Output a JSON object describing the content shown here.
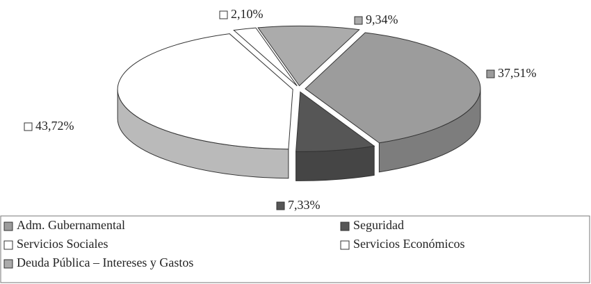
{
  "chart_data": {
    "type": "pie3d",
    "categories": [
      "Adm. Gubernamental",
      "Seguridad",
      "Servicios Sociales",
      "Servicios Económicos",
      "Deuda Pública – Intereses y Gastos"
    ],
    "values": [
      37.51,
      7.33,
      43.72,
      2.1,
      9.34
    ],
    "value_labels": [
      "37,51%",
      "7,33%",
      "43,72%",
      "2,10%",
      "9,34%"
    ],
    "colors": [
      "#9c9c9c",
      "#565656",
      "#ffffff",
      "#ffffff",
      "#ababab"
    ]
  }
}
